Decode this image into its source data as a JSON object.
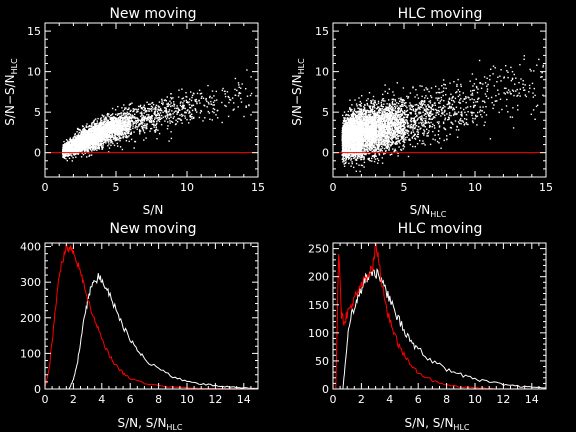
{
  "colors": {
    "background": "#000000",
    "foreground": "#ffffff",
    "accent": "#ff0000"
  },
  "chart_data": [
    {
      "type": "scatter",
      "title": "New moving",
      "xlabel": "S/N",
      "ylabel_main": "S/N−S/N",
      "ylabel_sub": "HLC",
      "xlim": [
        0,
        15
      ],
      "ylim": [
        -3,
        16
      ],
      "xticks": [
        0,
        5,
        10,
        15
      ],
      "yticks": [
        0,
        5,
        10,
        15
      ],
      "reference_line_y": 0,
      "trend": {
        "x": [
          1.2,
          2,
          3,
          4,
          5,
          6,
          8,
          10,
          12,
          14.5
        ],
        "y": [
          0.2,
          1.0,
          1.8,
          2.6,
          3.2,
          3.8,
          4.8,
          5.6,
          6.3,
          7.0
        ],
        "spread": [
          0.6,
          1.0,
          1.3,
          1.5,
          1.6,
          1.7,
          1.8,
          1.9,
          2.0,
          2.1
        ],
        "density": [
          60,
          900,
          1100,
          800,
          500,
          320,
          200,
          110,
          70,
          40
        ]
      }
    },
    {
      "type": "scatter",
      "title": "HLC moving",
      "xlabel_main": "S/N",
      "xlabel_sub": "HLC",
      "ylabel_main": "S/N−S/N",
      "ylabel_sub": "HLC",
      "xlim": [
        0,
        15
      ],
      "ylim": [
        -3,
        16
      ],
      "xticks": [
        0,
        5,
        10,
        15
      ],
      "yticks": [
        0,
        5,
        10,
        15
      ],
      "reference_line_y": 0,
      "trend": {
        "x": [
          0.6,
          1.2,
          2,
          3,
          4,
          5,
          7,
          9,
          11,
          13,
          14.8
        ],
        "y": [
          1.5,
          2.2,
          2.6,
          3.0,
          3.4,
          3.8,
          4.8,
          5.8,
          7.0,
          8.3,
          9.5
        ],
        "spread": [
          2.0,
          2.4,
          2.6,
          2.7,
          2.8,
          2.9,
          3.0,
          3.1,
          3.2,
          3.3,
          3.4
        ],
        "density": [
          300,
          1400,
          1300,
          900,
          600,
          400,
          220,
          130,
          80,
          50,
          30
        ]
      }
    },
    {
      "type": "line",
      "title": "New moving",
      "xlabel_main": "S/N, S/N",
      "xlabel_sub": "HLC",
      "xlim": [
        0,
        15
      ],
      "ylim": [
        0,
        410
      ],
      "xticks": [
        0,
        2,
        4,
        6,
        8,
        10,
        12,
        14
      ],
      "yticks": [
        0,
        100,
        200,
        300,
        400
      ],
      "series": [
        {
          "color": "#ffffff",
          "x": [
            1.7,
            2.0,
            2.3,
            2.6,
            2.9,
            3.2,
            3.5,
            3.8,
            4.1,
            4.5,
            5.0,
            5.5,
            6.0,
            6.5,
            7.0,
            8.0,
            9.0,
            10.0,
            11.0,
            12.0,
            13.0,
            14.0,
            15.0
          ],
          "y": [
            0,
            25,
            80,
            160,
            230,
            280,
            305,
            315,
            300,
            270,
            220,
            175,
            140,
            110,
            85,
            55,
            35,
            22,
            15,
            9,
            6,
            3,
            2
          ]
        },
        {
          "color": "#ff0000",
          "x": [
            0,
            0.3,
            0.6,
            0.9,
            1.2,
            1.5,
            1.8,
            2.1,
            2.4,
            2.7,
            3.0,
            3.4,
            3.8,
            4.2,
            4.6,
            5.0,
            5.5,
            6.0,
            6.5,
            7.0,
            8.0,
            9.0,
            10.0,
            11.0,
            12.0,
            13.0,
            14.0,
            15.0
          ],
          "y": [
            5,
            60,
            170,
            290,
            360,
            395,
            405,
            380,
            340,
            300,
            255,
            205,
            160,
            120,
            90,
            65,
            45,
            30,
            22,
            15,
            9,
            5,
            3,
            2,
            1,
            1,
            0,
            0
          ]
        }
      ]
    },
    {
      "type": "line",
      "title": "HLC moving",
      "xlabel_main": "S/N, S/N",
      "xlabel_sub": "HLC",
      "xlim": [
        0,
        15
      ],
      "ylim": [
        0,
        260
      ],
      "xticks": [
        0,
        2,
        4,
        6,
        8,
        10,
        12,
        14
      ],
      "yticks": [
        0,
        50,
        100,
        150,
        200,
        250
      ],
      "series": [
        {
          "color": "#ffffff",
          "x": [
            0.7,
            0.9,
            1.1,
            1.4,
            1.7,
            2.0,
            2.3,
            2.6,
            2.9,
            3.2,
            3.6,
            4.0,
            4.5,
            5.0,
            5.5,
            6.0,
            7.0,
            8.0,
            9.0,
            10.0,
            11.0,
            12.0,
            13.0,
            14.0,
            15.0
          ],
          "y": [
            0,
            60,
            110,
            140,
            160,
            180,
            195,
            205,
            210,
            200,
            180,
            160,
            130,
            105,
            85,
            70,
            50,
            35,
            25,
            18,
            12,
            8,
            5,
            3,
            2
          ]
        },
        {
          "color": "#ff0000",
          "x": [
            0.2,
            0.4,
            0.6,
            0.8,
            1.0,
            1.3,
            1.6,
            1.9,
            2.2,
            2.5,
            2.8,
            3.0,
            3.2,
            3.5,
            3.8,
            4.2,
            4.6,
            5.0,
            5.5,
            6.0,
            7.0,
            8.0,
            9.0,
            10.0,
            11.0,
            12.0,
            13.0,
            14.0
          ],
          "y": [
            0,
            250,
            130,
            120,
            135,
            150,
            165,
            180,
            195,
            205,
            215,
            260,
            230,
            180,
            140,
            105,
            80,
            60,
            42,
            30,
            15,
            8,
            4,
            2,
            1,
            0,
            0,
            0
          ]
        }
      ]
    }
  ]
}
